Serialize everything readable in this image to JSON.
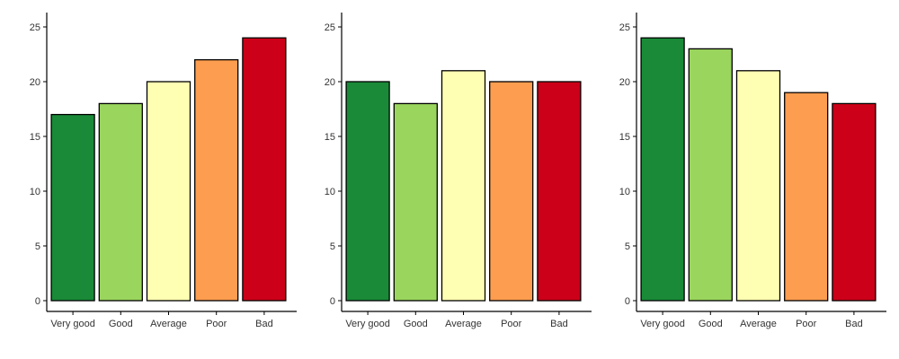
{
  "chart_data": [
    {
      "type": "bar",
      "categories": [
        "Very good",
        "Good",
        "Average",
        "Poor",
        "Bad"
      ],
      "values": [
        17,
        18,
        20,
        22,
        24
      ],
      "ylim": [
        0,
        25
      ],
      "yticks": [
        0,
        5,
        10,
        15,
        20,
        25
      ],
      "grid": false,
      "title": "",
      "xlabel": "",
      "ylabel": ""
    },
    {
      "type": "bar",
      "categories": [
        "Very good",
        "Good",
        "Average",
        "Poor",
        "Bad"
      ],
      "values": [
        20,
        18,
        21,
        20,
        20
      ],
      "ylim": [
        0,
        25
      ],
      "yticks": [
        0,
        5,
        10,
        15,
        20,
        25
      ],
      "grid": false,
      "title": "",
      "xlabel": "",
      "ylabel": ""
    },
    {
      "type": "bar",
      "categories": [
        "Very good",
        "Good",
        "Average",
        "Poor",
        "Bad"
      ],
      "values": [
        24,
        23,
        21,
        19,
        18
      ],
      "ylim": [
        0,
        25
      ],
      "yticks": [
        0,
        5,
        10,
        15,
        20,
        25
      ],
      "grid": false,
      "title": "",
      "xlabel": "",
      "ylabel": ""
    }
  ],
  "colors": {
    "Very good": "#1a8a38",
    "Good": "#9ad55d",
    "Average": "#ffffb3",
    "Poor": "#fc9d50",
    "Bad": "#cc0019",
    "outline": "#000000",
    "axis": "#000000"
  }
}
